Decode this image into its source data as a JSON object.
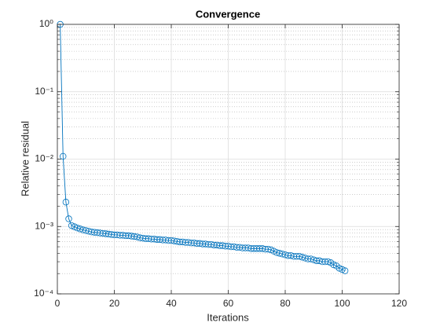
{
  "chart_data": {
    "type": "line",
    "title": "Convergence",
    "x_label": "Iterations",
    "y_label": "Relative residual",
    "x": [
      1,
      2,
      3,
      4,
      5,
      6,
      7,
      8,
      9,
      10,
      11,
      12,
      13,
      14,
      15,
      16,
      17,
      18,
      19,
      20,
      21,
      22,
      23,
      24,
      25,
      26,
      27,
      28,
      29,
      30,
      31,
      32,
      33,
      34,
      35,
      36,
      37,
      38,
      39,
      40,
      41,
      42,
      43,
      44,
      45,
      46,
      47,
      48,
      49,
      50,
      51,
      52,
      53,
      54,
      55,
      56,
      57,
      58,
      59,
      60,
      61,
      62,
      63,
      64,
      65,
      66,
      67,
      68,
      69,
      70,
      71,
      72,
      73,
      74,
      75,
      76,
      77,
      78,
      79,
      80,
      81,
      82,
      83,
      84,
      85,
      86,
      87,
      88,
      89,
      90,
      91,
      92,
      93,
      94,
      95,
      96,
      97,
      98,
      99,
      100,
      101
    ],
    "values": [
      1,
      0.011,
      0.0023,
      0.0013,
      0.00103,
      0.00099,
      0.00095,
      0.00092,
      0.00089,
      0.00087,
      0.00085,
      0.00083,
      0.00082,
      0.00081,
      0.0008,
      0.00079,
      0.00078,
      0.00077,
      0.00076,
      0.00075,
      0.00075,
      0.00074,
      0.00074,
      0.00073,
      0.00073,
      0.00072,
      0.00071,
      0.0007,
      0.00068,
      0.00067,
      0.00066,
      0.00066,
      0.00065,
      0.00065,
      0.00064,
      0.00064,
      0.00063,
      0.00063,
      0.00062,
      0.00062,
      0.00061,
      0.0006,
      0.00059,
      0.00059,
      0.00058,
      0.00058,
      0.00057,
      0.00057,
      0.00056,
      0.00056,
      0.00055,
      0.00055,
      0.00054,
      0.00054,
      0.00053,
      0.00053,
      0.00052,
      0.00052,
      0.00051,
      0.00051,
      0.0005,
      0.0005,
      0.00049,
      0.00049,
      0.00048,
      0.00048,
      0.00048,
      0.00047,
      0.00047,
      0.00047,
      0.00047,
      0.00047,
      0.00046,
      0.00046,
      0.00045,
      0.00043,
      0.00041,
      0.0004,
      0.00039,
      0.00038,
      0.00037,
      0.00037,
      0.00036,
      0.00036,
      0.00036,
      0.00035,
      0.00034,
      0.00033,
      0.00033,
      0.00032,
      0.00031,
      0.00031,
      0.0003,
      0.0003,
      0.0003,
      0.00029,
      0.00027,
      0.00026,
      0.00024,
      0.00023,
      0.00022
    ],
    "color": "#0072bd",
    "marker": "circle",
    "xlim": [
      0,
      120
    ],
    "xticks": [
      0,
      20,
      40,
      60,
      80,
      100,
      120
    ],
    "ylim": [
      0.0001,
      1
    ],
    "yscale": "log",
    "yticks": [
      {
        "value": 0.0001,
        "label": "10⁻⁴"
      },
      {
        "value": 0.001,
        "label": "10⁻³"
      },
      {
        "value": 0.01,
        "label": "10⁻²"
      },
      {
        "value": 0.1,
        "label": "10⁻¹"
      },
      {
        "value": 1,
        "label": "10⁰"
      }
    ],
    "grid": true,
    "minor_grid": true
  }
}
